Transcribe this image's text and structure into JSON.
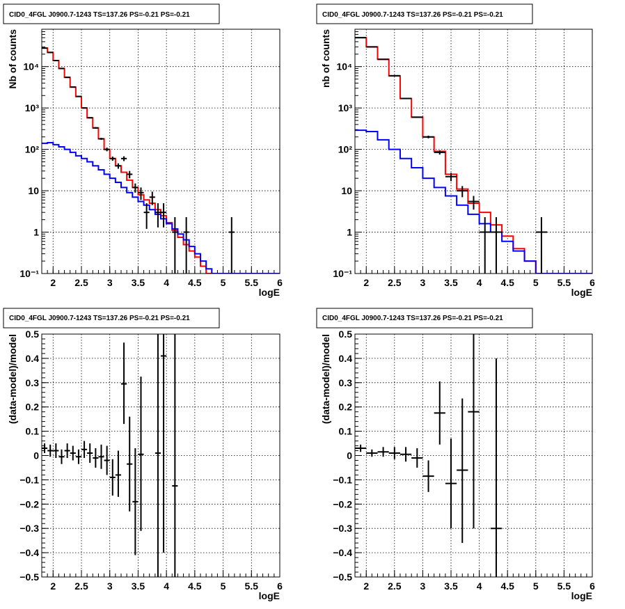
{
  "chart_data": [
    {
      "type": "line",
      "title": "CID0_4FGL J0900.7-1243 TS=137.26 PS=-0.21 PS=-0.21",
      "xlabel": "logE",
      "ylabel": "Nb of counts",
      "xlim": [
        1.8,
        6.0
      ],
      "ylim": [
        0.1,
        80000
      ],
      "yscale": "log",
      "grid": true,
      "xticks": [
        "2",
        "2.5",
        "3",
        "3.5",
        "4",
        "4.5",
        "5",
        "5.5",
        "6"
      ],
      "yticks": [
        "10⁻¹",
        "1",
        "10",
        "10²",
        "10³",
        "10⁴"
      ],
      "bin_edges": [
        1.8,
        1.9,
        2.0,
        2.1,
        2.2,
        2.3,
        2.4,
        2.5,
        2.6,
        2.7,
        2.8,
        2.9,
        3.0,
        3.1,
        3.2,
        3.3,
        3.4,
        3.5,
        3.6,
        3.7,
        3.8,
        3.9,
        4.0,
        4.1,
        4.2,
        4.3,
        4.4,
        4.5,
        4.6,
        4.7,
        4.8,
        4.9,
        5.0,
        5.1,
        5.2,
        5.3,
        5.4,
        5.5,
        5.6,
        5.7,
        5.8,
        5.9,
        6.0
      ],
      "series": [
        {
          "color": "#ff0000",
          "style": "histogram",
          "values": [
            28000,
            22000,
            14000,
            9000,
            5500,
            3200,
            1900,
            1000,
            580,
            330,
            180,
            100,
            60,
            40,
            28,
            18,
            12,
            8,
            6,
            5,
            3.5,
            2.5,
            1.7,
            1.1,
            0.75,
            0.5,
            0.35,
            0.25,
            0.15,
            0.1,
            0.1,
            0.1,
            0.1,
            0.1,
            0.1,
            0.1,
            0.1,
            0.1,
            0.1,
            0.1,
            0.1,
            0.1
          ]
        },
        {
          "color": "#0000ff",
          "style": "histogram",
          "values": [
            140,
            145,
            130,
            115,
            100,
            85,
            70,
            60,
            50,
            40,
            32,
            25,
            20,
            16,
            12,
            9,
            7,
            5.5,
            4.5,
            3.5,
            2.7,
            2.1,
            1.6,
            1.2,
            0.9,
            0.65,
            0.45,
            0.3,
            0.2,
            0.13,
            0.1,
            0.1,
            0.1,
            0.1,
            0.1,
            0.1,
            0.1,
            0.1,
            0.1,
            0.1,
            0.1,
            0.1
          ]
        },
        {
          "color": "#000000",
          "style": "points",
          "points": [
            {
              "x": 1.85,
              "y": 28000,
              "ylo": 27800,
              "yhi": 28200
            },
            {
              "x": 1.95,
              "y": 22000,
              "ylo": 21800,
              "yhi": 22200
            },
            {
              "x": 2.05,
              "y": 14000,
              "ylo": 13800,
              "yhi": 14200
            },
            {
              "x": 2.15,
              "y": 9000,
              "ylo": 8800,
              "yhi": 9200
            },
            {
              "x": 2.25,
              "y": 5500,
              "ylo": 5350,
              "yhi": 5650
            },
            {
              "x": 2.35,
              "y": 3200,
              "ylo": 3100,
              "yhi": 3300
            },
            {
              "x": 2.45,
              "y": 1900,
              "ylo": 1850,
              "yhi": 1950
            },
            {
              "x": 2.55,
              "y": 1000,
              "ylo": 970,
              "yhi": 1030
            },
            {
              "x": 2.65,
              "y": 580,
              "ylo": 560,
              "yhi": 600
            },
            {
              "x": 2.75,
              "y": 330,
              "ylo": 315,
              "yhi": 345
            },
            {
              "x": 2.85,
              "y": 180,
              "ylo": 170,
              "yhi": 190
            },
            {
              "x": 2.95,
              "y": 100,
              "ylo": 90,
              "yhi": 110
            },
            {
              "x": 3.05,
              "y": 60,
              "ylo": 53,
              "yhi": 67
            },
            {
              "x": 3.15,
              "y": 40,
              "ylo": 34,
              "yhi": 46
            },
            {
              "x": 3.25,
              "y": 60,
              "ylo": 52,
              "yhi": 68
            },
            {
              "x": 3.35,
              "y": 25,
              "ylo": 20,
              "yhi": 30
            },
            {
              "x": 3.45,
              "y": 12,
              "ylo": 9,
              "yhi": 15
            },
            {
              "x": 3.55,
              "y": 9,
              "ylo": 6,
              "yhi": 12
            },
            {
              "x": 3.65,
              "y": 3,
              "ylo": 1.2,
              "yhi": 5
            },
            {
              "x": 3.75,
              "y": 7,
              "ylo": 4.5,
              "yhi": 9.5
            },
            {
              "x": 3.85,
              "y": 3,
              "ylo": 1.3,
              "yhi": 5
            },
            {
              "x": 3.95,
              "y": 3,
              "ylo": 1.3,
              "yhi": 5
            },
            {
              "x": 4.15,
              "y": 1,
              "ylo": 0.1,
              "yhi": 2.3
            },
            {
              "x": 4.35,
              "y": 1,
              "ylo": 0.1,
              "yhi": 2.3
            },
            {
              "x": 5.15,
              "y": 1,
              "ylo": 0.1,
              "yhi": 2.3
            }
          ]
        }
      ]
    },
    {
      "type": "line",
      "title": "CID0_4FGL J0900.7-1243 TS=137.26 PS=-0.21 PS=-0.21",
      "xlabel": "logE",
      "ylabel": "nb of counts",
      "xlim": [
        1.8,
        6.0
      ],
      "ylim": [
        0.1,
        80000
      ],
      "yscale": "log",
      "grid": true,
      "xticks": [
        "2",
        "2.5",
        "3",
        "3.5",
        "4",
        "4.5",
        "5",
        "5.5",
        "6"
      ],
      "yticks": [
        "10⁻¹",
        "1",
        "10",
        "10²",
        "10³",
        "10⁴"
      ],
      "bin_edges": [
        1.8,
        2.0,
        2.2,
        2.4,
        2.6,
        2.8,
        3.0,
        3.2,
        3.4,
        3.6,
        3.8,
        4.0,
        4.2,
        4.4,
        4.6,
        4.8,
        5.0,
        5.2,
        5.4,
        5.6,
        5.8,
        6.0
      ],
      "series": [
        {
          "color": "#ff0000",
          "style": "histogram",
          "values": [
            50000,
            30000,
            15000,
            6000,
            1700,
            600,
            200,
            90,
            25,
            11,
            5,
            3,
            1.5,
            0.8,
            0.4,
            0.2,
            0.1,
            0.1,
            0.1,
            0.1,
            0.1
          ]
        },
        {
          "color": "#0000ff",
          "style": "histogram",
          "values": [
            290,
            270,
            170,
            100,
            60,
            36,
            20,
            12,
            7.5,
            4.5,
            2.7,
            1.6,
            1.0,
            0.6,
            0.35,
            0.2,
            0.1,
            0.1,
            0.1,
            0.1,
            0.1
          ]
        },
        {
          "color": "#000000",
          "style": "points",
          "points": [
            {
              "x": 1.9,
              "y": 50000,
              "ylo": 49700,
              "yhi": 50300
            },
            {
              "x": 2.1,
              "y": 30000,
              "ylo": 29700,
              "yhi": 30300
            },
            {
              "x": 2.3,
              "y": 15000,
              "ylo": 14800,
              "yhi": 15200
            },
            {
              "x": 2.5,
              "y": 6000,
              "ylo": 5900,
              "yhi": 6100
            },
            {
              "x": 2.7,
              "y": 1700,
              "ylo": 1650,
              "yhi": 1750
            },
            {
              "x": 2.9,
              "y": 600,
              "ylo": 580,
              "yhi": 620
            },
            {
              "x": 3.1,
              "y": 200,
              "ylo": 185,
              "yhi": 215
            },
            {
              "x": 3.3,
              "y": 85,
              "ylo": 75,
              "yhi": 95
            },
            {
              "x": 3.5,
              "y": 22,
              "ylo": 17,
              "yhi": 27
            },
            {
              "x": 3.7,
              "y": 10,
              "ylo": 7,
              "yhi": 13
            },
            {
              "x": 3.9,
              "y": 5.5,
              "ylo": 3.5,
              "yhi": 7.5
            },
            {
              "x": 4.1,
              "y": 1,
              "ylo": 0.1,
              "yhi": 2.3
            },
            {
              "x": 4.3,
              "y": 1,
              "ylo": 0.1,
              "yhi": 2.3
            },
            {
              "x": 5.1,
              "y": 1,
              "ylo": 0.1,
              "yhi": 2.3
            }
          ]
        }
      ]
    },
    {
      "type": "scatter",
      "title": "CID0_4FGL J0900.7-1243 TS=137.26 PS=-0.21 PS=-0.21",
      "xlabel": "logE",
      "ylabel": "(data-model)/model",
      "xlim": [
        1.8,
        6.0
      ],
      "ylim": [
        -0.5,
        0.5
      ],
      "yscale": "linear",
      "grid": true,
      "xticks": [
        "2",
        "2.5",
        "3",
        "3.5",
        "4",
        "4.5",
        "5",
        "5.5",
        "6"
      ],
      "yticks": [
        "−0.5",
        "−0.4",
        "−0.3",
        "−0.2",
        "−0.1",
        "0",
        "0.1",
        "0.2",
        "0.3",
        "0.4",
        "0.5"
      ],
      "half_width": 0.05,
      "points": [
        {
          "x": 1.85,
          "y": 0.03,
          "ylo": 0.01,
          "yhi": 0.05
        },
        {
          "x": 1.95,
          "y": 0.02,
          "ylo": -0.005,
          "yhi": 0.045
        },
        {
          "x": 2.05,
          "y": 0.02,
          "ylo": -0.01,
          "yhi": 0.05
        },
        {
          "x": 2.15,
          "y": -0.005,
          "ylo": -0.035,
          "yhi": 0.025
        },
        {
          "x": 2.25,
          "y": 0.02,
          "ylo": -0.01,
          "yhi": 0.05
        },
        {
          "x": 2.35,
          "y": 0.01,
          "ylo": -0.02,
          "yhi": 0.04
        },
        {
          "x": 2.45,
          "y": -0.005,
          "ylo": -0.035,
          "yhi": 0.025
        },
        {
          "x": 2.55,
          "y": 0.025,
          "ylo": -0.01,
          "yhi": 0.06
        },
        {
          "x": 2.65,
          "y": 0.01,
          "ylo": -0.03,
          "yhi": 0.05
        },
        {
          "x": 2.75,
          "y": -0.01,
          "ylo": -0.05,
          "yhi": 0.03
        },
        {
          "x": 2.85,
          "y": -0.005,
          "ylo": -0.055,
          "yhi": 0.045
        },
        {
          "x": 2.95,
          "y": -0.02,
          "ylo": -0.08,
          "yhi": 0.04
        },
        {
          "x": 3.05,
          "y": -0.09,
          "ylo": -0.165,
          "yhi": -0.015
        },
        {
          "x": 3.15,
          "y": -0.08,
          "ylo": -0.17,
          "yhi": 0.02
        },
        {
          "x": 3.25,
          "y": 0.295,
          "ylo": 0.13,
          "yhi": 0.465
        },
        {
          "x": 3.35,
          "y": -0.035,
          "ylo": -0.23,
          "yhi": 0.16
        },
        {
          "x": 3.45,
          "y": -0.19,
          "ylo": -0.41,
          "yhi": 0.03
        },
        {
          "x": 3.55,
          "y": 0.005,
          "ylo": -0.31,
          "yhi": 0.325
        },
        {
          "x": 3.85,
          "y": 0.01,
          "ylo": -0.5,
          "yhi": 0.5
        },
        {
          "x": 3.95,
          "y": 0.41,
          "ylo": -0.4,
          "yhi": 0.5
        },
        {
          "x": 4.15,
          "y": -0.125,
          "ylo": -0.5,
          "yhi": 0.5
        }
      ]
    },
    {
      "type": "scatter",
      "title": "CID0_4FGL J0900.7-1243 TS=137.26 PS=-0.21 PS=-0.21",
      "xlabel": "logE",
      "ylabel": "(data-model)/model",
      "xlim": [
        1.8,
        6.0
      ],
      "ylim": [
        -0.5,
        0.5
      ],
      "yscale": "linear",
      "grid": true,
      "xticks": [
        "2",
        "2.5",
        "3",
        "3.5",
        "4",
        "4.5",
        "5",
        "5.5",
        "6"
      ],
      "yticks": [
        "−0.5",
        "−0.4",
        "−0.3",
        "−0.2",
        "−0.1",
        "0",
        "0.1",
        "0.2",
        "0.3",
        "0.4",
        "0.5"
      ],
      "half_width": 0.1,
      "points": [
        {
          "x": 1.9,
          "y": 0.03,
          "ylo": 0.015,
          "yhi": 0.045
        },
        {
          "x": 2.1,
          "y": 0.01,
          "ylo": -0.005,
          "yhi": 0.025
        },
        {
          "x": 2.3,
          "y": 0.015,
          "ylo": -0.005,
          "yhi": 0.035
        },
        {
          "x": 2.5,
          "y": 0.01,
          "ylo": -0.015,
          "yhi": 0.035
        },
        {
          "x": 2.7,
          "y": 0.005,
          "ylo": -0.025,
          "yhi": 0.035
        },
        {
          "x": 2.9,
          "y": -0.01,
          "ylo": -0.05,
          "yhi": 0.03
        },
        {
          "x": 3.1,
          "y": -0.085,
          "ylo": -0.15,
          "yhi": -0.02
        },
        {
          "x": 3.3,
          "y": 0.175,
          "ylo": 0.045,
          "yhi": 0.305
        },
        {
          "x": 3.5,
          "y": -0.115,
          "ylo": -0.3,
          "yhi": 0.07
        },
        {
          "x": 3.7,
          "y": -0.06,
          "ylo": -0.36,
          "yhi": 0.235
        },
        {
          "x": 3.9,
          "y": 0.18,
          "ylo": -0.3,
          "yhi": 0.5
        },
        {
          "x": 4.3,
          "y": -0.3,
          "ylo": -0.5,
          "yhi": 0.4
        }
      ]
    }
  ]
}
